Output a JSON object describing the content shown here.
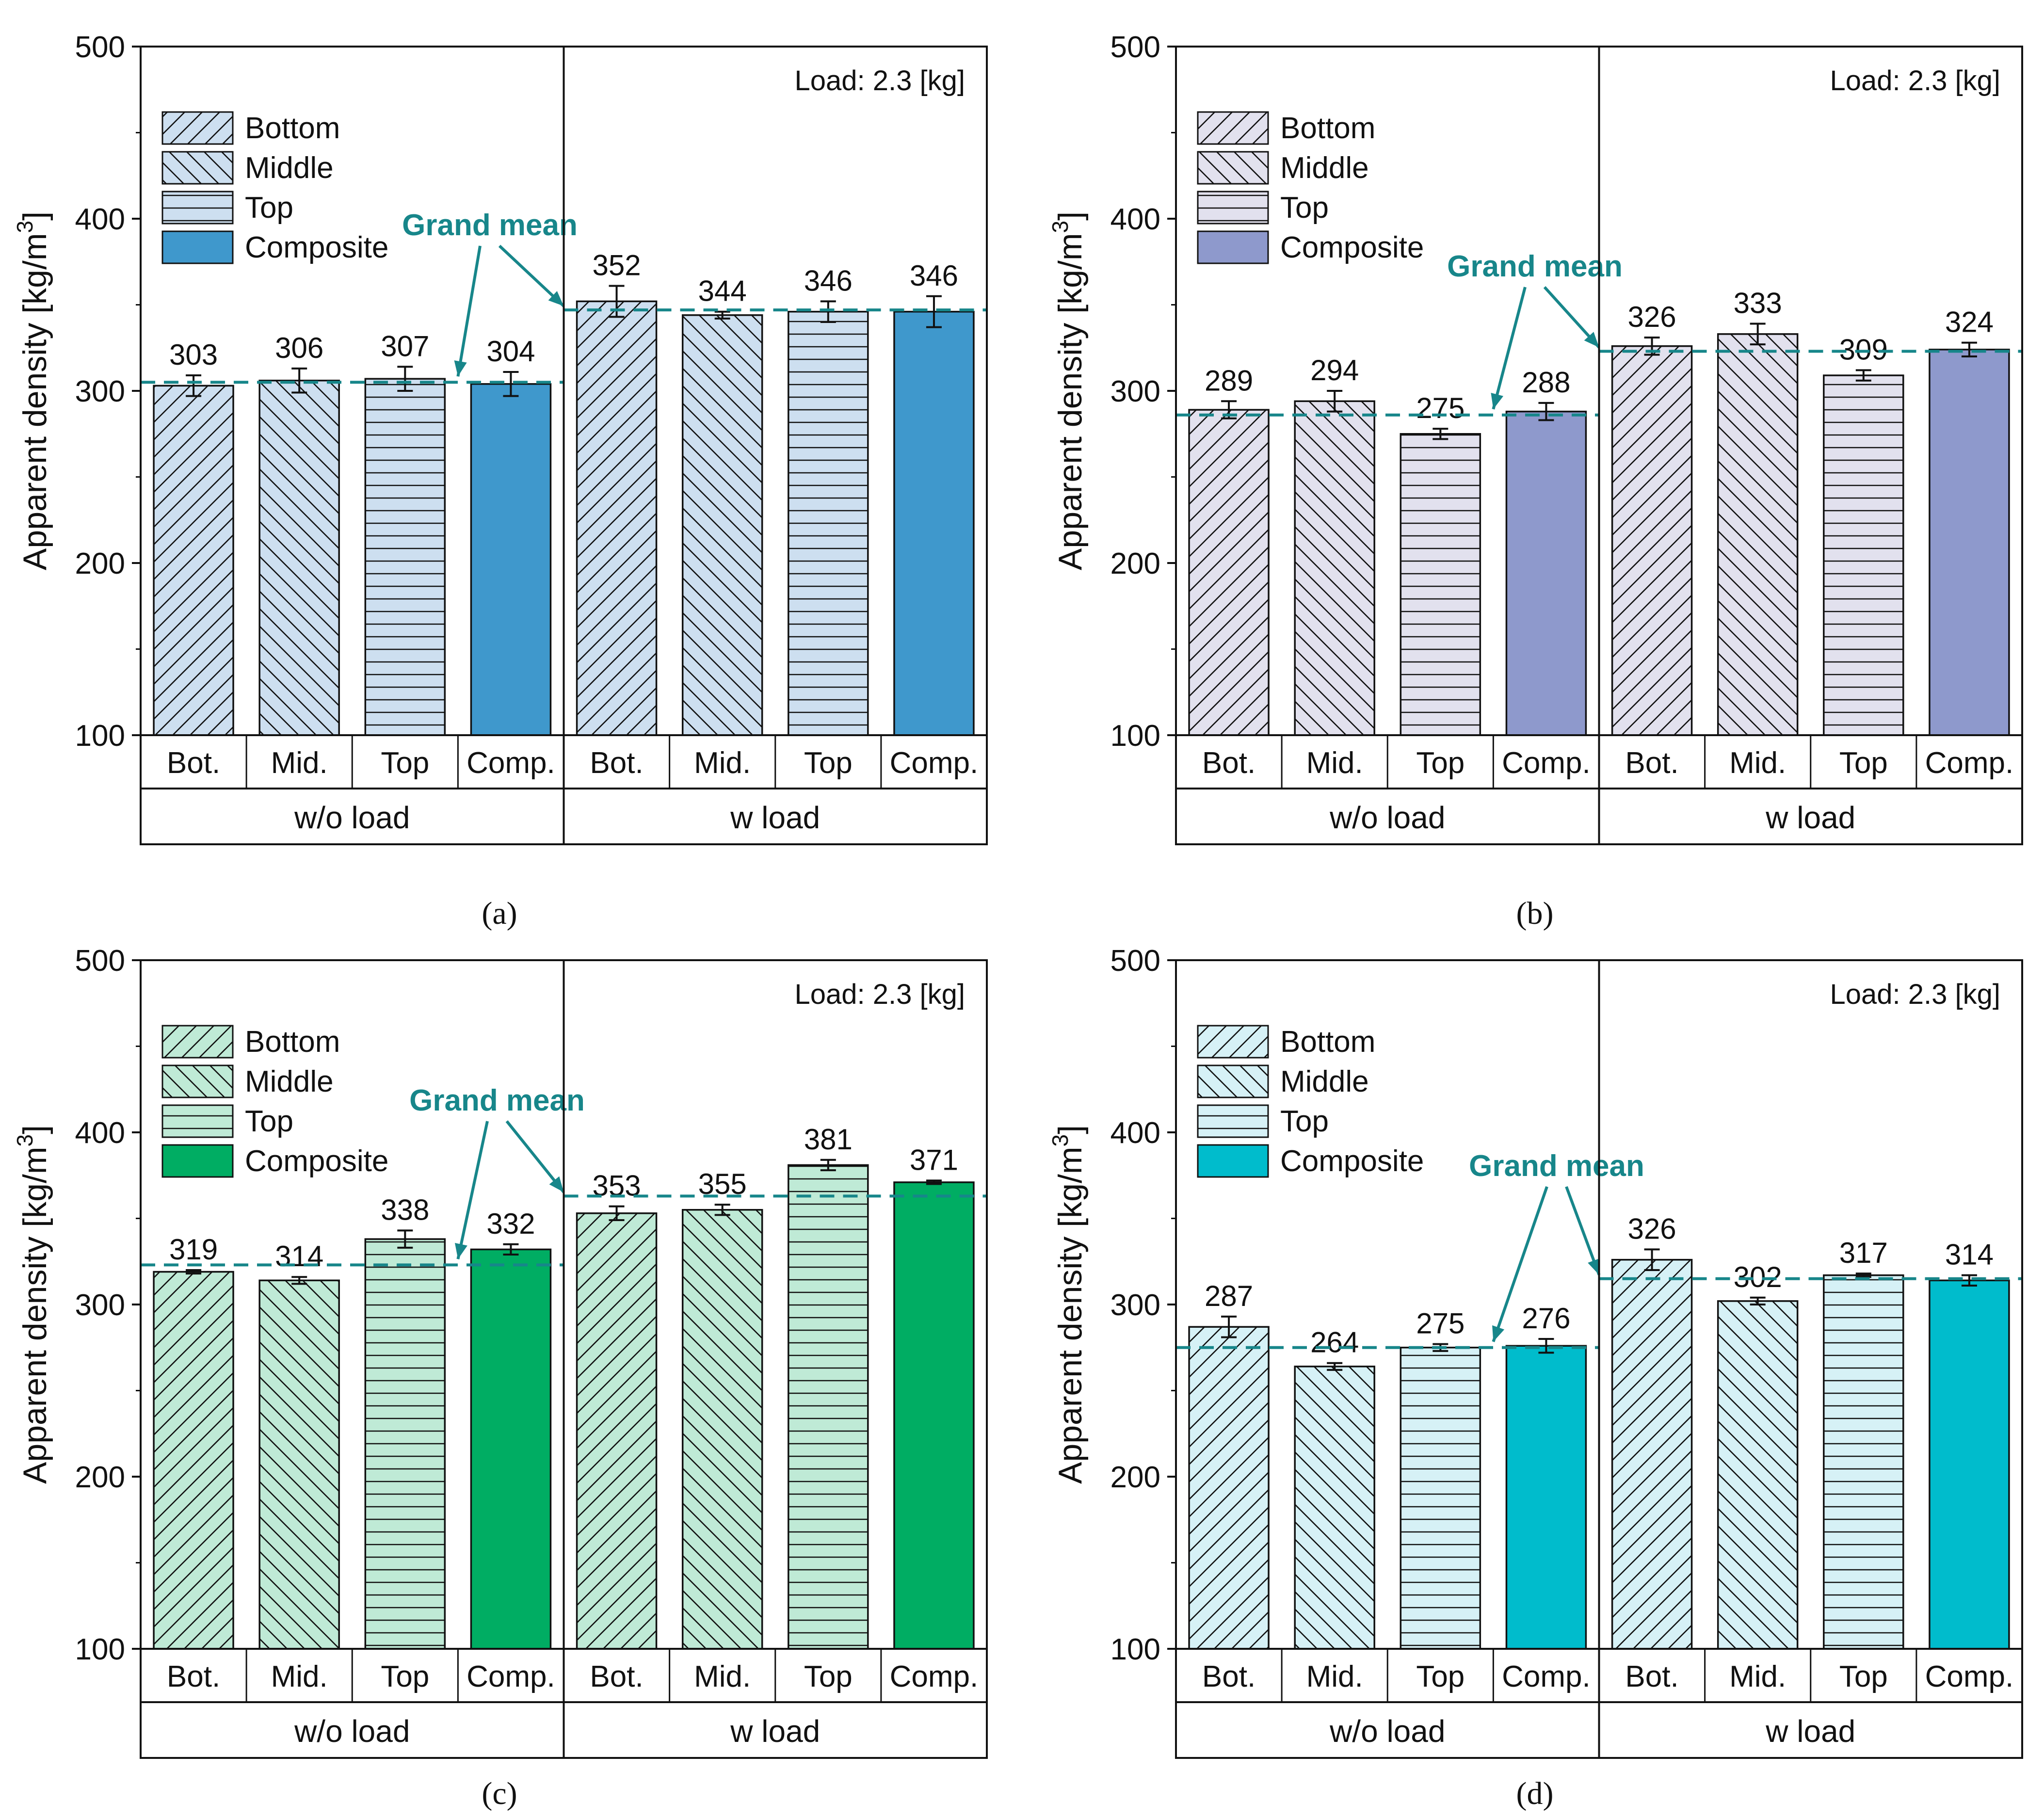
{
  "figure": {
    "captions": [
      "(a)",
      "(b)",
      "(c)",
      "(d)"
    ]
  },
  "chart_data": [
    {
      "panel": "a",
      "type": "bar",
      "ylabel": "Apparent density [kg/m3]",
      "ylabel_main": "Apparent density [kg/m",
      "ylabel_sup": "3",
      "ylabel_close": "]",
      "ylim": [
        100,
        500
      ],
      "yticks": [
        100,
        200,
        300,
        400,
        500
      ],
      "load_note": "Load: 2.3 [kg]",
      "annotation": "Grand mean",
      "legend": [
        "Bottom",
        "Middle",
        "Top",
        "Composite"
      ],
      "groups": [
        "w/o load",
        "w load"
      ],
      "categories": [
        "Bot.",
        "Mid.",
        "Top",
        "Comp.",
        "Bot.",
        "Mid.",
        "Top",
        "Comp."
      ],
      "patterns": [
        "up",
        "down",
        "horiz",
        "solid",
        "up",
        "down",
        "horiz",
        "solid"
      ],
      "values": [
        303,
        306,
        307,
        304,
        352,
        344,
        346,
        346
      ],
      "errors": [
        6,
        7,
        7,
        7,
        9,
        2,
        6,
        9
      ],
      "grand_means": [
        305,
        347
      ],
      "colors": {
        "light": "#cddff0",
        "solid": "#3f98cc"
      }
    },
    {
      "panel": "b",
      "type": "bar",
      "ylabel": "Apparent density [kg/m3]",
      "ylabel_main": "Apparent density [kg/m",
      "ylabel_sup": "3",
      "ylabel_close": "]",
      "ylim": [
        100,
        500
      ],
      "yticks": [
        100,
        200,
        300,
        400,
        500
      ],
      "load_note": "Load: 2.3 [kg]",
      "annotation": "Grand mean",
      "legend": [
        "Bottom",
        "Middle",
        "Top",
        "Composite"
      ],
      "groups": [
        "w/o load",
        "w load"
      ],
      "categories": [
        "Bot.",
        "Mid.",
        "Top",
        "Comp.",
        "Bot.",
        "Mid.",
        "Top",
        "Comp."
      ],
      "patterns": [
        "up",
        "down",
        "horiz",
        "solid",
        "up",
        "down",
        "horiz",
        "solid"
      ],
      "values": [
        289,
        294,
        275,
        288,
        326,
        333,
        309,
        324
      ],
      "errors": [
        5,
        6,
        3,
        5,
        5,
        6,
        3,
        4
      ],
      "grand_means": [
        286,
        323
      ],
      "colors": {
        "light": "#e2e1ee",
        "solid": "#8e99cc"
      }
    },
    {
      "panel": "c",
      "type": "bar",
      "ylabel": "Apparent density [kg/m3]",
      "ylabel_main": "Apparent density [kg/m",
      "ylabel_sup": "3",
      "ylabel_close": "]",
      "ylim": [
        100,
        500
      ],
      "yticks": [
        100,
        200,
        300,
        400,
        500
      ],
      "load_note": "Load: 2.3 [kg]",
      "annotation": "Grand mean",
      "legend": [
        "Bottom",
        "Middle",
        "Top",
        "Composite"
      ],
      "groups": [
        "w/o load",
        "w load"
      ],
      "categories": [
        "Bot.",
        "Mid.",
        "Top",
        "Comp.",
        "Bot.",
        "Mid.",
        "Top",
        "Comp."
      ],
      "patterns": [
        "up",
        "down",
        "horiz",
        "solid",
        "up",
        "down",
        "horiz",
        "solid"
      ],
      "values": [
        319,
        314,
        338,
        332,
        353,
        355,
        381,
        371
      ],
      "errors": [
        1,
        2,
        5,
        3,
        4,
        3,
        3,
        1
      ],
      "grand_means": [
        323,
        363
      ],
      "colors": {
        "light": "#bfead6",
        "solid": "#00ad63"
      }
    },
    {
      "panel": "d",
      "type": "bar",
      "ylabel": "Apparent density [kg/m3]",
      "ylabel_main": "Apparent density [kg/m",
      "ylabel_sup": "3",
      "ylabel_close": "]",
      "ylim": [
        100,
        500
      ],
      "yticks": [
        100,
        200,
        300,
        400,
        500
      ],
      "load_note": "Load: 2.3 [kg]",
      "annotation": "Grand mean",
      "legend": [
        "Bottom",
        "Middle",
        "Top",
        "Composite"
      ],
      "groups": [
        "w/o load",
        "w load"
      ],
      "categories": [
        "Bot.",
        "Mid.",
        "Top",
        "Comp.",
        "Bot.",
        "Mid.",
        "Top",
        "Comp."
      ],
      "patterns": [
        "up",
        "down",
        "horiz",
        "solid",
        "up",
        "down",
        "horiz",
        "solid"
      ],
      "values": [
        287,
        264,
        275,
        276,
        326,
        302,
        317,
        314
      ],
      "errors": [
        6,
        2,
        2,
        4,
        6,
        2,
        1,
        3
      ],
      "grand_means": [
        275,
        315
      ],
      "colors": {
        "light": "#d6f1f6",
        "solid": "#00bccc"
      }
    }
  ],
  "style": {
    "grand_mean_color": "#17868a",
    "border_color": "#111111"
  }
}
